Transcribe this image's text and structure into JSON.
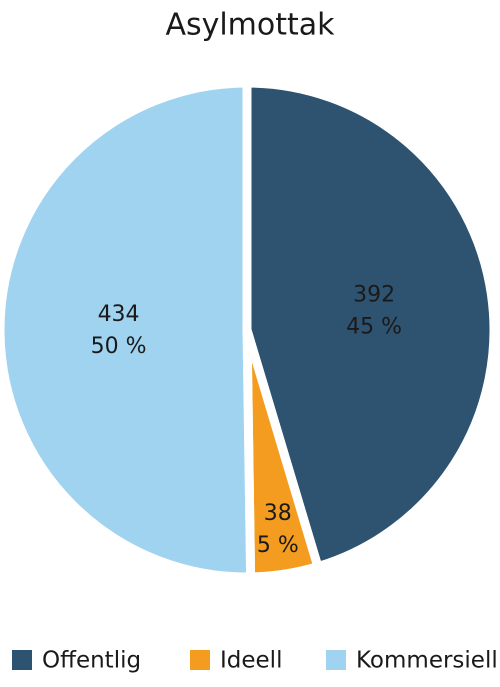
{
  "chart_data": {
    "type": "pie",
    "title": "Asylmottak",
    "categories": [
      "Offentlig",
      "Ideell",
      "Kommersiell"
    ],
    "values": [
      392,
      38,
      434
    ],
    "percent_labels": [
      "45 %",
      "5 %",
      "50 %"
    ],
    "colors": [
      "#2e5370",
      "#f39c1f",
      "#9fd3f0"
    ],
    "legend": "bottom"
  }
}
